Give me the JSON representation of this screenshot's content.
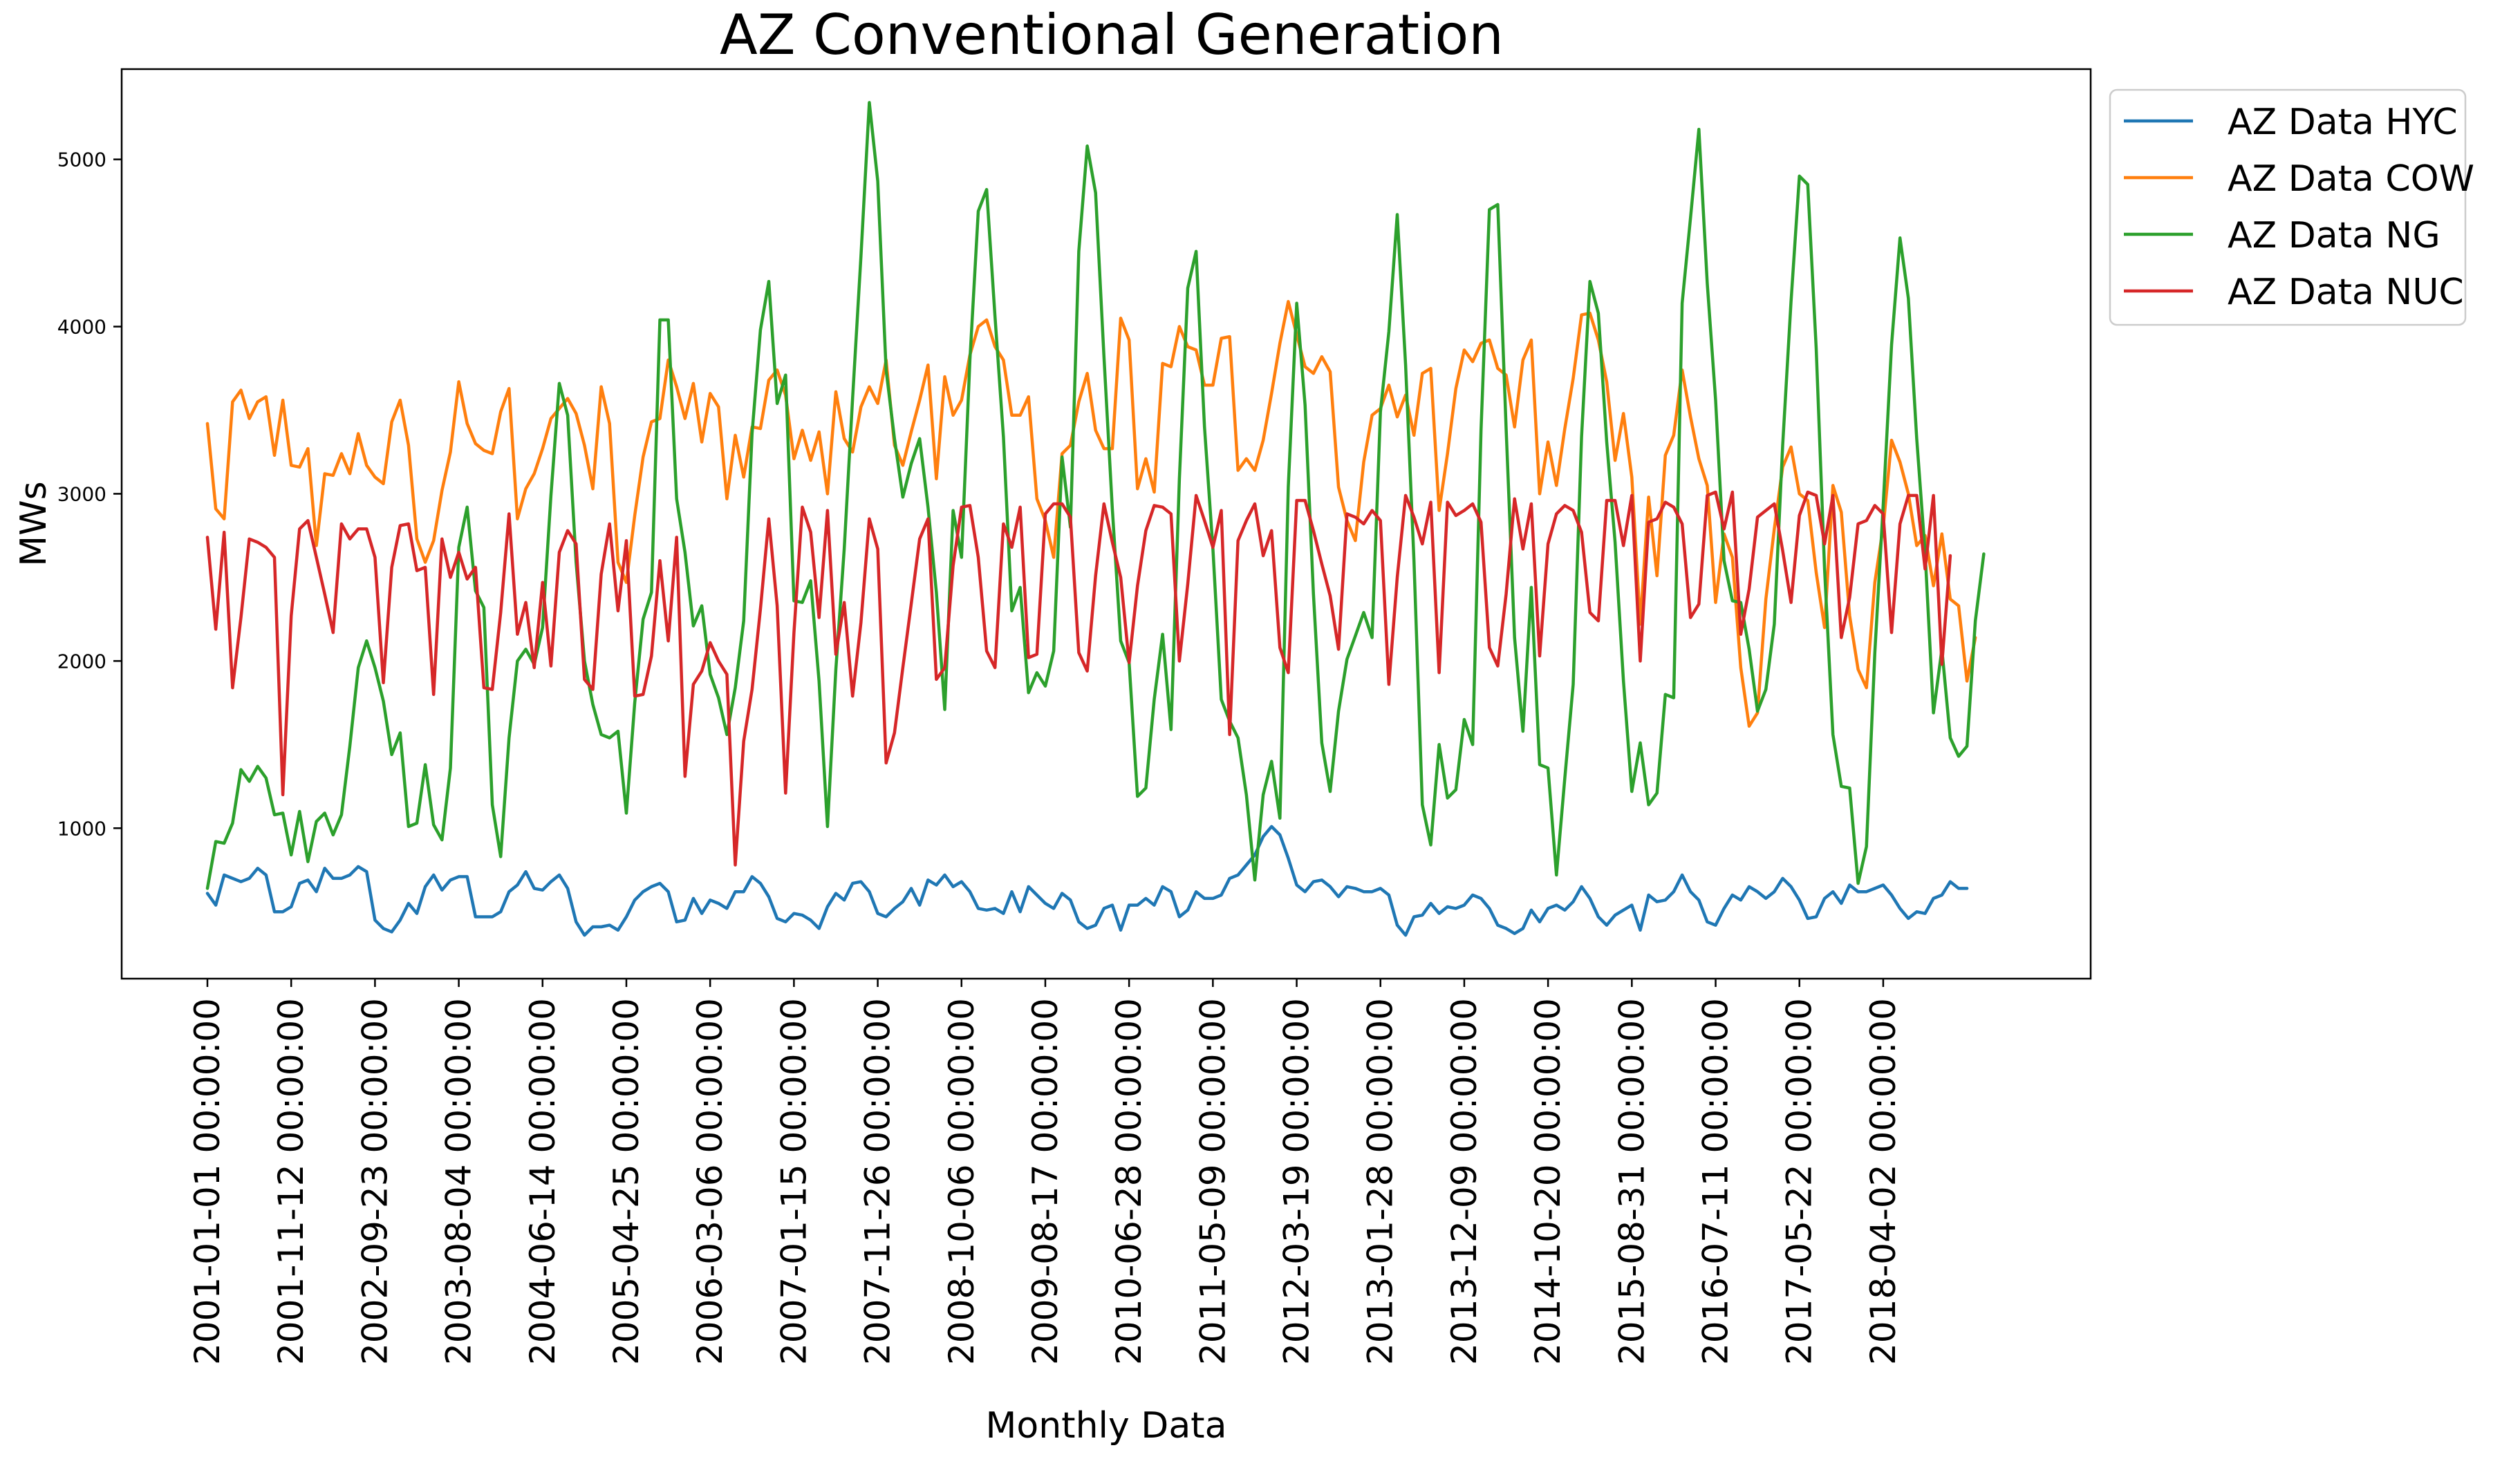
{
  "chart_data": {
    "type": "line",
    "title": "AZ Conventional Generation",
    "xlabel": "Monthly Data",
    "ylabel": "MWs",
    "ylim": [
      100,
      5540
    ],
    "yticks": [
      1000,
      2000,
      3000,
      4000,
      5000
    ],
    "grid": false,
    "legend_position": "outside-top-right",
    "x_start": "2001-01",
    "x_count": 210,
    "x_tick_labels": [
      {
        "index": 0,
        "label": "2001-01-01 00:00:00"
      },
      {
        "index": 10,
        "label": "2001-11-12 00:00:00"
      },
      {
        "index": 20,
        "label": "2002-09-23 00:00:00"
      },
      {
        "index": 30,
        "label": "2003-08-04 00:00:00"
      },
      {
        "index": 40,
        "label": "2004-06-14 00:00:00"
      },
      {
        "index": 50,
        "label": "2005-04-25 00:00:00"
      },
      {
        "index": 60,
        "label": "2006-03-06 00:00:00"
      },
      {
        "index": 70,
        "label": "2007-01-15 00:00:00"
      },
      {
        "index": 80,
        "label": "2007-11-26 00:00:00"
      },
      {
        "index": 90,
        "label": "2008-10-06 00:00:00"
      },
      {
        "index": 100,
        "label": "2009-08-17 00:00:00"
      },
      {
        "index": 110,
        "label": "2010-06-28 00:00:00"
      },
      {
        "index": 120,
        "label": "2011-05-09 00:00:00"
      },
      {
        "index": 130,
        "label": "2012-03-19 00:00:00"
      },
      {
        "index": 140,
        "label": "2013-01-28 00:00:00"
      },
      {
        "index": 150,
        "label": "2013-12-09 00:00:00"
      },
      {
        "index": 160,
        "label": "2014-10-20 00:00:00"
      },
      {
        "index": 170,
        "label": "2015-08-31 00:00:00"
      },
      {
        "index": 180,
        "label": "2016-07-11 00:00:00"
      },
      {
        "index": 190,
        "label": "2017-05-22 00:00:00"
      },
      {
        "index": 200,
        "label": "2018-04-02 00:00:00"
      }
    ],
    "series": [
      {
        "name": "AZ Data HYC",
        "color": "#1f77b4",
        "values": [
          610,
          540,
          720,
          700,
          680,
          700,
          760,
          720,
          500,
          500,
          530,
          670,
          690,
          620,
          760,
          700,
          700,
          720,
          770,
          740,
          450,
          400,
          380,
          450,
          550,
          490,
          650,
          720,
          630,
          690,
          710,
          710,
          470,
          470,
          470,
          500,
          620,
          660,
          740,
          640,
          630,
          680,
          720,
          640,
          440,
          360,
          410,
          410,
          420,
          390,
          470,
          570,
          620,
          650,
          670,
          620,
          440,
          450,
          580,
          490,
          570,
          550,
          520,
          620,
          620,
          710,
          670,
          590,
          460,
          440,
          490,
          480,
          450,
          400,
          530,
          610,
          570,
          670,
          680,
          620,
          490,
          470,
          520,
          560,
          640,
          540,
          690,
          660,
          720,
          650,
          680,
          620,
          520,
          510,
          520,
          490,
          620,
          500,
          650,
          600,
          550,
          520,
          610,
          570,
          440,
          400,
          420,
          520,
          540,
          390,
          540,
          540,
          580,
          540,
          650,
          620,
          470,
          510,
          620,
          580,
          580,
          600,
          700,
          720,
          780,
          840,
          950,
          1010,
          960,
          820,
          660,
          620,
          680,
          690,
          650,
          590,
          650,
          640,
          620,
          620,
          640,
          600,
          420,
          360,
          470,
          480,
          550,
          490,
          530,
          520,
          540,
          600,
          580,
          520,
          420,
          400,
          370,
          400,
          510,
          440,
          520,
          540,
          510,
          560,
          650,
          580,
          470,
          420,
          480,
          510,
          540,
          390,
          600,
          560,
          570,
          620,
          720,
          620,
          570,
          440,
          420,
          520,
          600,
          570,
          650,
          620,
          580,
          620,
          700,
          650,
          570,
          460,
          470,
          580,
          620,
          550,
          660,
          620,
          620,
          640,
          660,
          600,
          520,
          460,
          500,
          490,
          580,
          600,
          680,
          640,
          640
        ]
      },
      {
        "name": "AZ Data COW",
        "color": "#ff7f0e",
        "values": [
          3420,
          2910,
          2850,
          3550,
          3620,
          3450,
          3550,
          3580,
          3230,
          3560,
          3170,
          3160,
          3270,
          2690,
          3120,
          3110,
          3240,
          3120,
          3360,
          3170,
          3100,
          3060,
          3430,
          3560,
          3290,
          2730,
          2590,
          2720,
          3020,
          3250,
          3670,
          3420,
          3300,
          3260,
          3240,
          3490,
          3630,
          2850,
          3030,
          3120,
          3270,
          3450,
          3510,
          3570,
          3480,
          3290,
          3030,
          3640,
          3420,
          2590,
          2470,
          2870,
          3220,
          3430,
          3450,
          3800,
          3640,
          3450,
          3660,
          3310,
          3600,
          3520,
          2970,
          3350,
          3100,
          3400,
          3390,
          3680,
          3740,
          3590,
          3210,
          3380,
          3200,
          3370,
          3000,
          3610,
          3330,
          3250,
          3520,
          3640,
          3540,
          3800,
          3290,
          3170,
          3370,
          3560,
          3770,
          3090,
          3700,
          3470,
          3560,
          3830,
          4000,
          4040,
          3880,
          3800,
          3470,
          3470,
          3580,
          2970,
          2840,
          2620,
          3240,
          3290,
          3550,
          3720,
          3380,
          3270,
          3270,
          4050,
          3920,
          3030,
          3210,
          3010,
          3780,
          3760,
          4000,
          3880,
          3860,
          3650,
          3650,
          3930,
          3940,
          3140,
          3210,
          3140,
          3320,
          3600,
          3900,
          4150,
          3950,
          3760,
          3720,
          3820,
          3730,
          3040,
          2840,
          2720,
          3190,
          3470,
          3510,
          3650,
          3460,
          3590,
          3350,
          3720,
          3750,
          2900,
          3240,
          3630,
          3860,
          3790,
          3900,
          3920,
          3750,
          3710,
          3400,
          3800,
          3920,
          3000,
          3310,
          3050,
          3390,
          3690,
          4070,
          4080,
          3920,
          3670,
          3200,
          3480,
          3100,
          2220,
          2980,
          2510,
          3230,
          3350,
          3740,
          3460,
          3210,
          3050,
          2350,
          2760,
          2620,
          1960,
          1610,
          1690,
          2370,
          2790,
          3160,
          3280,
          3000,
          2960,
          2530,
          2200,
          3050,
          2890,
          2270,
          1950,
          1840,
          2470,
          2800,
          3320,
          3190,
          3000,
          2690,
          2750,
          2450,
          2760,
          2370,
          2330,
          1880,
          2140
        ]
      },
      {
        "name": "AZ Data NG",
        "color": "#2ca02c",
        "values": [
          640,
          920,
          910,
          1030,
          1350,
          1280,
          1370,
          1300,
          1080,
          1090,
          840,
          1100,
          800,
          1040,
          1090,
          960,
          1080,
          1490,
          1960,
          2120,
          1960,
          1760,
          1440,
          1570,
          1010,
          1030,
          1380,
          1020,
          930,
          1360,
          2680,
          2920,
          2420,
          2320,
          1140,
          830,
          1540,
          2000,
          2070,
          1980,
          2200,
          2990,
          3660,
          3470,
          2590,
          2000,
          1740,
          1560,
          1540,
          1580,
          1090,
          1750,
          2250,
          2410,
          4040,
          4040,
          2970,
          2650,
          2210,
          2330,
          1920,
          1780,
          1560,
          1840,
          2240,
          3360,
          3980,
          4270,
          3540,
          3710,
          2360,
          2350,
          2480,
          1880,
          1010,
          1950,
          2670,
          3570,
          4420,
          5340,
          4870,
          3740,
          3330,
          2980,
          3180,
          3330,
          2920,
          2410,
          1710,
          2900,
          2620,
          3800,
          4690,
          4820,
          4060,
          3340,
          2300,
          2440,
          1810,
          1930,
          1850,
          2060,
          3220,
          2800,
          4450,
          5080,
          4800,
          3820,
          2910,
          2120,
          1990,
          1190,
          1240,
          1770,
          2160,
          1590,
          3090,
          4230,
          4450,
          3400,
          2670,
          1770,
          1640,
          1540,
          1200,
          690,
          1200,
          1400,
          1060,
          3040,
          4140,
          3530,
          2400,
          1510,
          1220,
          1700,
          2010,
          2150,
          2290,
          2140,
          3490,
          3970,
          4670,
          3770,
          2600,
          1140,
          900,
          1500,
          1180,
          1230,
          1650,
          1500,
          3380,
          4700,
          4730,
          3390,
          2140,
          1580,
          2440,
          1380,
          1360,
          720,
          1300,
          1860,
          3340,
          4270,
          4080,
          3310,
          2710,
          1880,
          1220,
          1510,
          1140,
          1210,
          1800,
          1780,
          4140,
          4650,
          5180,
          4260,
          3560,
          2600,
          2360,
          2350,
          2070,
          1700,
          1830,
          2220,
          3290,
          4150,
          4900,
          4850,
          3870,
          2550,
          1560,
          1250,
          1240,
          670,
          890,
          2050,
          2930,
          3890,
          4530,
          4170,
          3330,
          2650,
          1690,
          2070,
          1540,
          1430,
          1490,
          2240,
          2640
        ]
      },
      {
        "name": "AZ Data NUC",
        "color": "#d62728",
        "values": [
          2740,
          2190,
          2770,
          1840,
          2260,
          2730,
          2710,
          2680,
          2620,
          1200,
          2270,
          2790,
          2840,
          2620,
          2400,
          2170,
          2820,
          2730,
          2790,
          2790,
          2620,
          1870,
          2560,
          2810,
          2820,
          2540,
          2560,
          1800,
          2730,
          2500,
          2650,
          2490,
          2560,
          1840,
          1830,
          2290,
          2880,
          2160,
          2350,
          1960,
          2470,
          1970,
          2650,
          2780,
          2700,
          1890,
          1830,
          2520,
          2820,
          2300,
          2720,
          1790,
          1800,
          2030,
          2600,
          2120,
          2740,
          1310,
          1860,
          1940,
          2110,
          2000,
          1920,
          780,
          1520,
          1830,
          2310,
          2850,
          2330,
          1210,
          2170,
          2920,
          2770,
          2260,
          2900,
          2040,
          2350,
          1790,
          2230,
          2850,
          2670,
          1390,
          1570,
          1960,
          2340,
          2730,
          2850,
          1890,
          1960,
          2570,
          2920,
          2930,
          2620,
          2060,
          1960,
          2820,
          2680,
          2920,
          2020,
          2040,
          2880,
          2940,
          2940,
          2860,
          2050,
          1940,
          2510,
          2940,
          2710,
          2500,
          1990,
          2450,
          2780,
          2930,
          2920,
          2880,
          2000,
          2460,
          2990,
          2840,
          2680,
          2900,
          1560,
          2720,
          2840,
          2940,
          2630,
          2780,
          2080,
          1930,
          2960,
          2960,
          2780,
          2580,
          2390,
          2070,
          2880,
          2860,
          2820,
          2900,
          2840,
          1860,
          2500,
          2990,
          2860,
          2700,
          2950,
          1930,
          2950,
          2870,
          2900,
          2940,
          2830,
          2080,
          1970,
          2400,
          2970,
          2670,
          2940,
          2030,
          2700,
          2880,
          2930,
          2900,
          2770,
          2290,
          2240,
          2960,
          2960,
          2690,
          2990,
          2000,
          2830,
          2850,
          2950,
          2920,
          2820,
          2260,
          2340,
          2990,
          3010,
          2790,
          3010,
          2160,
          2430,
          2860,
          2900,
          2940,
          2660,
          2350,
          2870,
          3010,
          2990,
          2700,
          2990,
          2140,
          2380,
          2820,
          2840,
          2930,
          2880,
          2170,
          2820,
          2990,
          2990,
          2550,
          2990,
          1980,
          2630
        ]
      }
    ]
  }
}
